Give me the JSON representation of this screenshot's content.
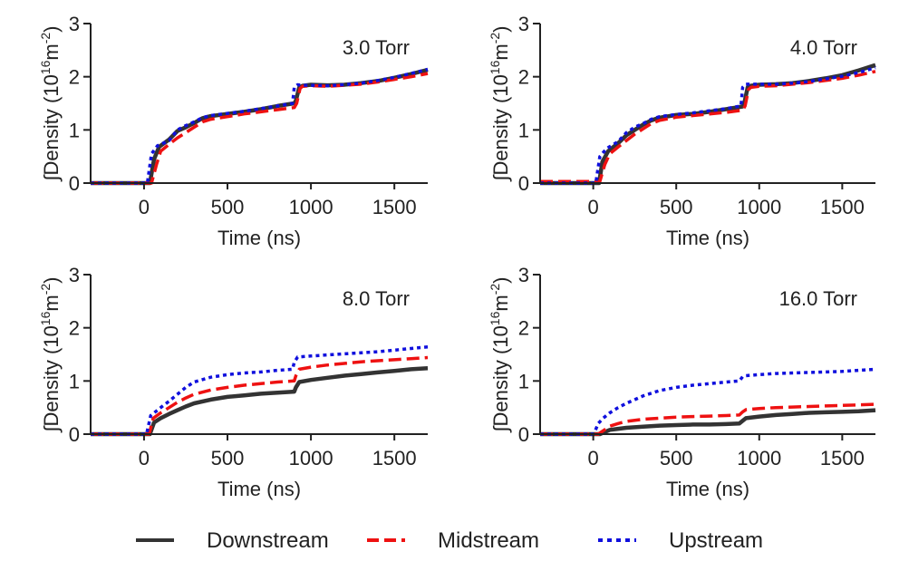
{
  "colors": {
    "Downstream": "#333333",
    "Midstream": "#ee1111",
    "Upstream": "#1010dd",
    "axis": "#222222"
  },
  "legend": [
    {
      "name": "Downstream",
      "style": "solid"
    },
    {
      "name": "Midstream",
      "style": "dashed"
    },
    {
      "name": "Upstream",
      "style": "dotted"
    }
  ],
  "chart_data": [
    {
      "type": "line",
      "annotation": "3.0 Torr",
      "xlabel": "Time (ns)",
      "ylabel": {
        "prefix": "∫Density (10",
        "sup1": "16",
        "mid": "m",
        "sup2": "-2",
        "suffix": ")"
      },
      "xlim": [
        -320,
        1700
      ],
      "ylim": [
        0,
        3
      ],
      "xticks": [
        0,
        500,
        1000,
        1500
      ],
      "yticks": [
        0,
        1,
        2,
        3
      ],
      "series": [
        {
          "name": "Downstream",
          "x": [
            -320,
            35,
            60,
            90,
            150,
            200,
            250,
            300,
            350,
            400,
            500,
            600,
            700,
            800,
            900,
            910,
            930,
            950,
            1000,
            1100,
            1200,
            1300,
            1400,
            1500,
            1600,
            1700
          ],
          "y": [
            0,
            0,
            0.45,
            0.68,
            0.82,
            0.98,
            1.05,
            1.13,
            1.22,
            1.26,
            1.3,
            1.34,
            1.39,
            1.45,
            1.5,
            1.55,
            1.8,
            1.83,
            1.85,
            1.84,
            1.85,
            1.88,
            1.92,
            1.98,
            2.05,
            2.13
          ]
        },
        {
          "name": "Midstream",
          "x": [
            -320,
            45,
            75,
            100,
            150,
            200,
            250,
            300,
            350,
            400,
            500,
            600,
            700,
            800,
            900,
            915,
            935,
            950,
            1000,
            1100,
            1200,
            1300,
            1400,
            1500,
            1600,
            1700
          ],
          "y": [
            0,
            0,
            0.35,
            0.6,
            0.73,
            0.85,
            0.95,
            1.05,
            1.15,
            1.2,
            1.25,
            1.3,
            1.34,
            1.38,
            1.42,
            1.5,
            1.78,
            1.82,
            1.83,
            1.82,
            1.84,
            1.86,
            1.9,
            1.95,
            2.0,
            2.06
          ]
        },
        {
          "name": "Upstream",
          "x": [
            -320,
            20,
            45,
            80,
            150,
            200,
            250,
            300,
            350,
            400,
            500,
            600,
            700,
            800,
            890,
            900,
            920,
            950,
            1000,
            1100,
            1200,
            1300,
            1400,
            1500,
            1600,
            1700
          ],
          "y": [
            0,
            0,
            0.55,
            0.7,
            0.8,
            1.0,
            1.08,
            1.15,
            1.23,
            1.27,
            1.31,
            1.35,
            1.4,
            1.45,
            1.5,
            1.8,
            1.85,
            1.84,
            1.84,
            1.83,
            1.85,
            1.88,
            1.93,
            1.99,
            2.06,
            2.14
          ]
        }
      ]
    },
    {
      "type": "line",
      "annotation": "4.0 Torr",
      "xlabel": "Time (ns)",
      "ylabel": {
        "prefix": "∫Density (10",
        "sup1": "16",
        "mid": "m",
        "sup2": "-2",
        "suffix": ")"
      },
      "xlim": [
        -320,
        1700
      ],
      "ylim": [
        0,
        3
      ],
      "xticks": [
        0,
        500,
        1000,
        1500
      ],
      "yticks": [
        0,
        1,
        2,
        3
      ],
      "series": [
        {
          "name": "Downstream",
          "x": [
            -320,
            35,
            55,
            90,
            150,
            200,
            250,
            300,
            350,
            400,
            500,
            600,
            700,
            800,
            900,
            910,
            930,
            950,
            1000,
            1100,
            1200,
            1300,
            1400,
            1500,
            1600,
            1700
          ],
          "y": [
            0,
            0,
            0.4,
            0.6,
            0.75,
            0.9,
            1.0,
            1.1,
            1.18,
            1.23,
            1.28,
            1.3,
            1.34,
            1.39,
            1.44,
            1.5,
            1.8,
            1.83,
            1.85,
            1.86,
            1.88,
            1.92,
            1.97,
            2.03,
            2.12,
            2.22
          ]
        },
        {
          "name": "Midstream",
          "x": [
            -320,
            40,
            70,
            100,
            150,
            200,
            250,
            300,
            350,
            400,
            500,
            600,
            700,
            800,
            900,
            915,
            935,
            950,
            1000,
            1100,
            1200,
            1300,
            1400,
            1500,
            1600,
            1700
          ],
          "y": [
            0.03,
            0.03,
            0.35,
            0.55,
            0.68,
            0.8,
            0.92,
            1.02,
            1.12,
            1.18,
            1.24,
            1.27,
            1.3,
            1.33,
            1.37,
            1.45,
            1.76,
            1.8,
            1.82,
            1.83,
            1.86,
            1.89,
            1.93,
            1.97,
            2.03,
            2.1
          ]
        },
        {
          "name": "Upstream",
          "x": [
            -320,
            15,
            40,
            80,
            150,
            200,
            250,
            300,
            350,
            400,
            500,
            600,
            700,
            800,
            890,
            900,
            920,
            950,
            1000,
            1100,
            1200,
            1300,
            1400,
            1500,
            1600,
            1700
          ],
          "y": [
            0,
            0,
            0.5,
            0.65,
            0.78,
            0.95,
            1.05,
            1.12,
            1.2,
            1.25,
            1.29,
            1.32,
            1.36,
            1.4,
            1.45,
            1.8,
            1.86,
            1.86,
            1.86,
            1.86,
            1.88,
            1.91,
            1.96,
            2.01,
            2.08,
            2.17
          ]
        }
      ]
    },
    {
      "type": "line",
      "annotation": "8.0 Torr",
      "xlabel": "Time (ns)",
      "ylabel": {
        "prefix": "∫Density (10",
        "sup1": "16",
        "mid": "m",
        "sup2": "-2",
        "suffix": ")"
      },
      "xlim": [
        -320,
        1700
      ],
      "ylim": [
        0,
        3
      ],
      "xticks": [
        0,
        500,
        1000,
        1500
      ],
      "yticks": [
        0,
        1,
        2,
        3
      ],
      "series": [
        {
          "name": "Downstream",
          "x": [
            -320,
            35,
            60,
            100,
            150,
            200,
            250,
            300,
            400,
            500,
            600,
            700,
            800,
            900,
            910,
            930,
            1000,
            1100,
            1200,
            1300,
            1400,
            1500,
            1600,
            1700
          ],
          "y": [
            0,
            0,
            0.22,
            0.3,
            0.38,
            0.45,
            0.52,
            0.58,
            0.65,
            0.7,
            0.73,
            0.76,
            0.78,
            0.8,
            0.88,
            0.98,
            1.02,
            1.06,
            1.1,
            1.13,
            1.16,
            1.19,
            1.22,
            1.24
          ]
        },
        {
          "name": "Midstream",
          "x": [
            -320,
            30,
            55,
            100,
            150,
            200,
            250,
            300,
            400,
            500,
            600,
            700,
            800,
            900,
            910,
            930,
            1000,
            1100,
            1200,
            1300,
            1400,
            1500,
            1600,
            1700
          ],
          "y": [
            0,
            0,
            0.3,
            0.4,
            0.5,
            0.6,
            0.68,
            0.75,
            0.83,
            0.88,
            0.92,
            0.95,
            0.98,
            1.0,
            1.1,
            1.22,
            1.26,
            1.3,
            1.33,
            1.36,
            1.38,
            1.4,
            1.42,
            1.44
          ]
        },
        {
          "name": "Upstream",
          "x": [
            -320,
            15,
            40,
            100,
            150,
            200,
            250,
            300,
            400,
            500,
            600,
            700,
            800,
            890,
            900,
            920,
            1000,
            1100,
            1200,
            1300,
            1400,
            1500,
            1600,
            1700
          ],
          "y": [
            0,
            0,
            0.35,
            0.5,
            0.62,
            0.75,
            0.88,
            0.98,
            1.07,
            1.12,
            1.15,
            1.17,
            1.2,
            1.22,
            1.35,
            1.45,
            1.47,
            1.49,
            1.51,
            1.53,
            1.55,
            1.58,
            1.61,
            1.64
          ]
        }
      ]
    },
    {
      "type": "line",
      "annotation": "16.0 Torr",
      "xlabel": "Time (ns)",
      "ylabel": {
        "prefix": "∫Density (10",
        "sup1": "16",
        "mid": "m",
        "sup2": "-2",
        "suffix": ")"
      },
      "xlim": [
        -320,
        1700
      ],
      "ylim": [
        0,
        3
      ],
      "xticks": [
        0,
        500,
        1000,
        1500
      ],
      "yticks": [
        0,
        1,
        2,
        3
      ],
      "series": [
        {
          "name": "Downstream",
          "x": [
            -320,
            40,
            100,
            150,
            200,
            300,
            400,
            500,
            600,
            700,
            800,
            880,
            900,
            920,
            1000,
            1100,
            1200,
            1300,
            1400,
            1500,
            1600,
            1700
          ],
          "y": [
            0,
            0,
            0.08,
            0.1,
            0.12,
            0.14,
            0.16,
            0.17,
            0.18,
            0.18,
            0.19,
            0.2,
            0.25,
            0.3,
            0.33,
            0.36,
            0.38,
            0.4,
            0.41,
            0.42,
            0.43,
            0.45
          ]
        },
        {
          "name": "Midstream",
          "x": [
            -320,
            30,
            100,
            150,
            200,
            300,
            400,
            500,
            600,
            700,
            800,
            880,
            900,
            920,
            1000,
            1100,
            1200,
            1300,
            1400,
            1500,
            1600,
            1700
          ],
          "y": [
            0,
            0,
            0.15,
            0.2,
            0.24,
            0.28,
            0.3,
            0.32,
            0.33,
            0.34,
            0.35,
            0.36,
            0.42,
            0.46,
            0.48,
            0.5,
            0.51,
            0.52,
            0.53,
            0.54,
            0.55,
            0.56
          ]
        },
        {
          "name": "Upstream",
          "x": [
            -320,
            -200,
            0,
            10,
            30,
            60,
            100,
            150,
            200,
            300,
            400,
            500,
            600,
            700,
            800,
            880,
            900,
            920,
            1000,
            1100,
            1200,
            1300,
            1400,
            1500,
            1600,
            1700
          ],
          "y": [
            0,
            0,
            0,
            0.05,
            0.2,
            0.3,
            0.4,
            0.5,
            0.58,
            0.72,
            0.82,
            0.88,
            0.92,
            0.95,
            0.98,
            1.0,
            1.08,
            1.1,
            1.12,
            1.14,
            1.15,
            1.16,
            1.17,
            1.18,
            1.2,
            1.22
          ]
        }
      ]
    }
  ]
}
